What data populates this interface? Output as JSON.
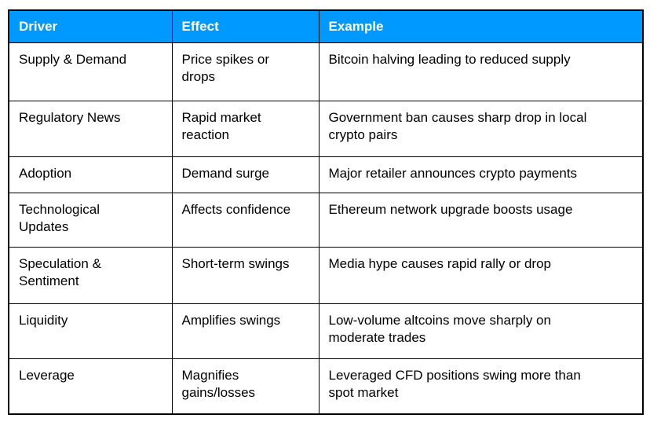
{
  "colors": {
    "header_bg": "#0099ff",
    "header_text": "#ffffff",
    "border": "#000000",
    "body_text": "#000000",
    "page_bg": "#ffffff"
  },
  "table": {
    "columns": [
      {
        "label": "Driver"
      },
      {
        "label": "Effect"
      },
      {
        "label": "Example"
      }
    ],
    "rows": [
      {
        "driver": "Supply & Demand",
        "effect": "Price spikes or\ndrops",
        "example": "Bitcoin halving leading to reduced supply"
      },
      {
        "driver": "Regulatory News",
        "effect": "Rapid market\nreaction",
        "example": "Government ban causes sharp drop in local\ncrypto pairs"
      },
      {
        "driver": "Adoption",
        "effect": "Demand surge",
        "example": "Major retailer announces crypto payments"
      },
      {
        "driver": "Technological\nUpdates",
        "effect": "Affects confidence",
        "example": "Ethereum network upgrade boosts usage"
      },
      {
        "driver": "Speculation &\nSentiment",
        "effect": "Short-term swings",
        "example": "Media hype causes rapid rally or drop"
      },
      {
        "driver": "Liquidity",
        "effect": "Amplifies swings",
        "example": "Low-volume altcoins move sharply on\nmoderate trades"
      },
      {
        "driver": "Leverage",
        "effect": "Magnifies\ngains/losses",
        "example": "Leveraged CFD positions swing more than\nspot market"
      }
    ]
  },
  "chart_data": {
    "type": "table",
    "title": "",
    "columns": [
      "Driver",
      "Effect",
      "Example"
    ],
    "rows": [
      [
        "Supply & Demand",
        "Price spikes or drops",
        "Bitcoin halving leading to reduced supply"
      ],
      [
        "Regulatory News",
        "Rapid market reaction",
        "Government ban causes sharp drop in local crypto pairs"
      ],
      [
        "Adoption",
        "Demand surge",
        "Major retailer announces crypto payments"
      ],
      [
        "Technological Updates",
        "Affects confidence",
        "Ethereum network upgrade boosts usage"
      ],
      [
        "Speculation & Sentiment",
        "Short-term swings",
        "Media hype causes rapid rally or drop"
      ],
      [
        "Liquidity",
        "Amplifies swings",
        "Low-volume altcoins move sharply on moderate trades"
      ],
      [
        "Leverage",
        "Magnifies gains/losses",
        "Leveraged CFD positions swing more than spot market"
      ]
    ]
  }
}
